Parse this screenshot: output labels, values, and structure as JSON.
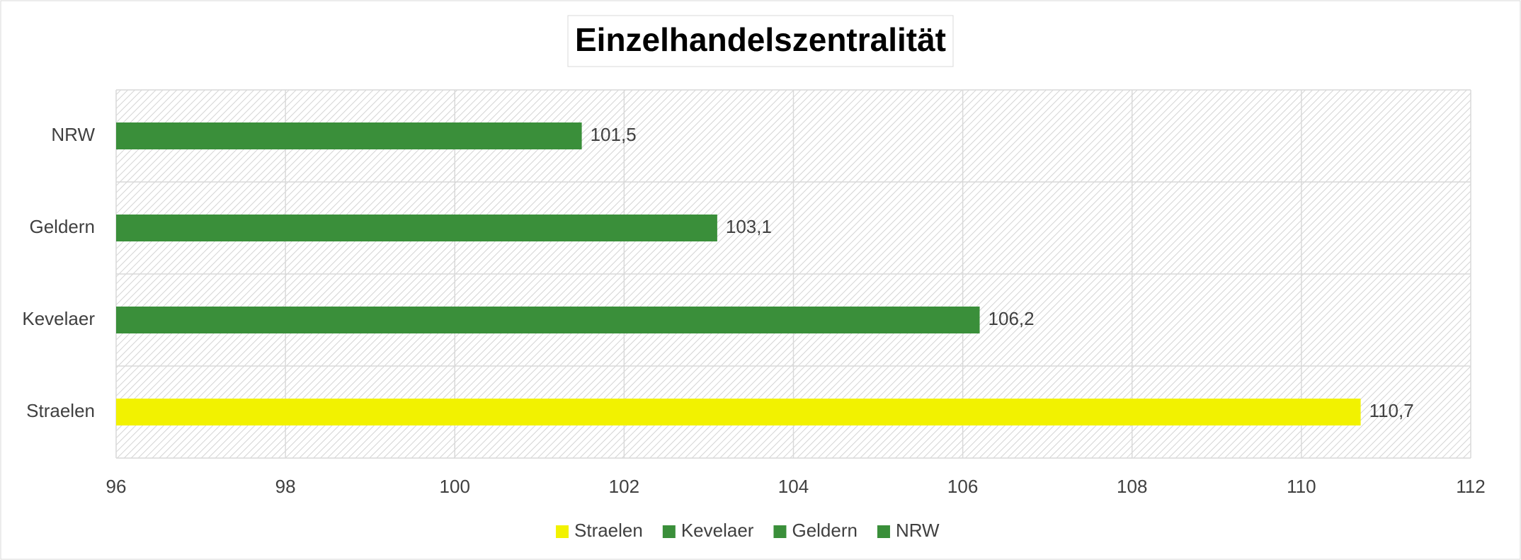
{
  "chart_data": {
    "type": "bar",
    "orientation": "horizontal",
    "title": "Einzelhandelszentralität",
    "categories": [
      "Straelen",
      "Kevelaer",
      "Geldern",
      "NRW"
    ],
    "values": [
      110.7,
      106.2,
      103.1,
      101.5
    ],
    "value_labels": [
      "110,7",
      "106,2",
      "103,1",
      "101,5"
    ],
    "colors": [
      "#f2f200",
      "#3a8f3a",
      "#3a8f3a",
      "#3a8f3a"
    ],
    "xlim": [
      96,
      112
    ],
    "xticks": [
      96,
      98,
      100,
      102,
      104,
      106,
      108,
      110,
      112
    ],
    "grid": true,
    "legend": "bottom"
  }
}
